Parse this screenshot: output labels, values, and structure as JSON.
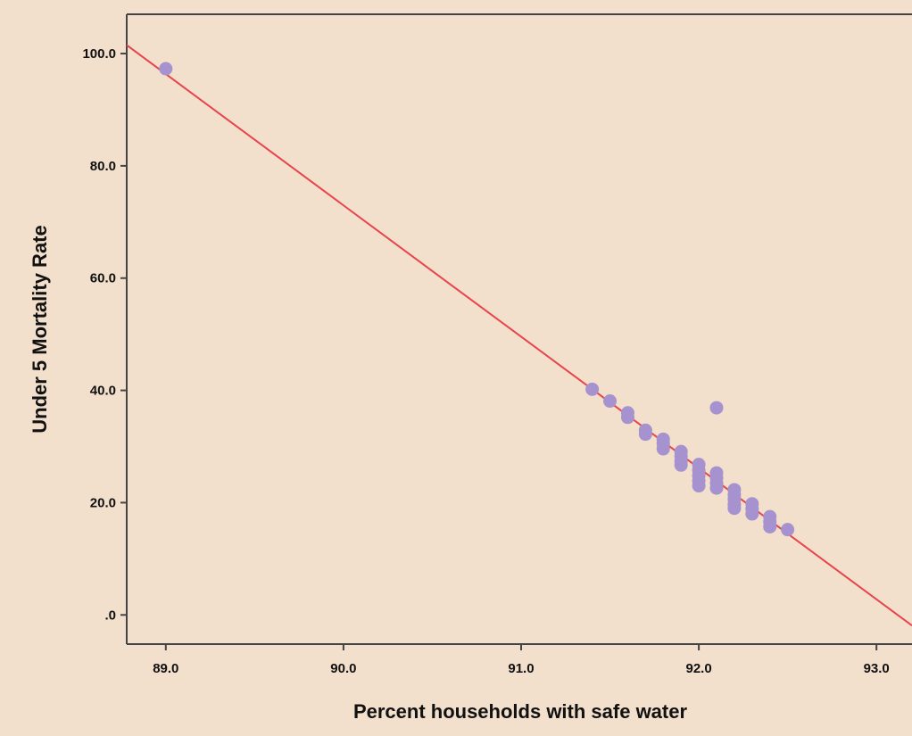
{
  "chart_data": {
    "type": "scatter",
    "title": "",
    "xlabel": "Percent households with safe water",
    "ylabel": "Under 5 Mortality Rate",
    "xlim": [
      88.78,
      93.2
    ],
    "ylim": [
      -5.2,
      107
    ],
    "x_ticks": [
      89.0,
      90.0,
      91.0,
      92.0,
      93.0
    ],
    "x_tick_labels": [
      "89.0",
      "90.0",
      "91.0",
      "92.0",
      "93.0"
    ],
    "y_ticks": [
      0,
      20,
      40,
      60,
      80,
      100
    ],
    "y_tick_labels": [
      ".0",
      "20.0",
      "40.0",
      "60.0",
      "80.0",
      "100.0"
    ],
    "grid": false,
    "legend": "none",
    "plot_background": "#f2dfcc",
    "point_color": "#a592cf",
    "fit_line_color": "#e8444c",
    "points": [
      {
        "x": 89.0,
        "y": 97.3
      },
      {
        "x": 91.4,
        "y": 40.2
      },
      {
        "x": 91.5,
        "y": 38.1
      },
      {
        "x": 91.6,
        "y": 36.0
      },
      {
        "x": 91.6,
        "y": 35.2
      },
      {
        "x": 91.7,
        "y": 32.9
      },
      {
        "x": 91.7,
        "y": 32.2
      },
      {
        "x": 91.8,
        "y": 31.3
      },
      {
        "x": 91.8,
        "y": 30.5
      },
      {
        "x": 91.8,
        "y": 29.6
      },
      {
        "x": 91.9,
        "y": 29.1
      },
      {
        "x": 91.9,
        "y": 28.3
      },
      {
        "x": 91.9,
        "y": 27.4
      },
      {
        "x": 91.9,
        "y": 26.7
      },
      {
        "x": 92.0,
        "y": 26.8
      },
      {
        "x": 92.0,
        "y": 25.8
      },
      {
        "x": 92.0,
        "y": 24.8
      },
      {
        "x": 92.0,
        "y": 23.9
      },
      {
        "x": 92.0,
        "y": 23.0
      },
      {
        "x": 92.1,
        "y": 36.9
      },
      {
        "x": 92.1,
        "y": 25.3
      },
      {
        "x": 92.1,
        "y": 24.4
      },
      {
        "x": 92.1,
        "y": 23.5
      },
      {
        "x": 92.1,
        "y": 22.6
      },
      {
        "x": 92.2,
        "y": 22.3
      },
      {
        "x": 92.2,
        "y": 21.4
      },
      {
        "x": 92.2,
        "y": 20.6
      },
      {
        "x": 92.2,
        "y": 19.7
      },
      {
        "x": 92.2,
        "y": 19.0
      },
      {
        "x": 92.3,
        "y": 19.8
      },
      {
        "x": 92.3,
        "y": 18.9
      },
      {
        "x": 92.3,
        "y": 18.0
      },
      {
        "x": 92.4,
        "y": 17.5
      },
      {
        "x": 92.4,
        "y": 16.6
      },
      {
        "x": 92.4,
        "y": 15.7
      },
      {
        "x": 92.5,
        "y": 15.2
      }
    ],
    "fit_line": [
      {
        "x": 88.78,
        "y": 101.5
      },
      {
        "x": 93.2,
        "y": -1.9
      }
    ]
  }
}
